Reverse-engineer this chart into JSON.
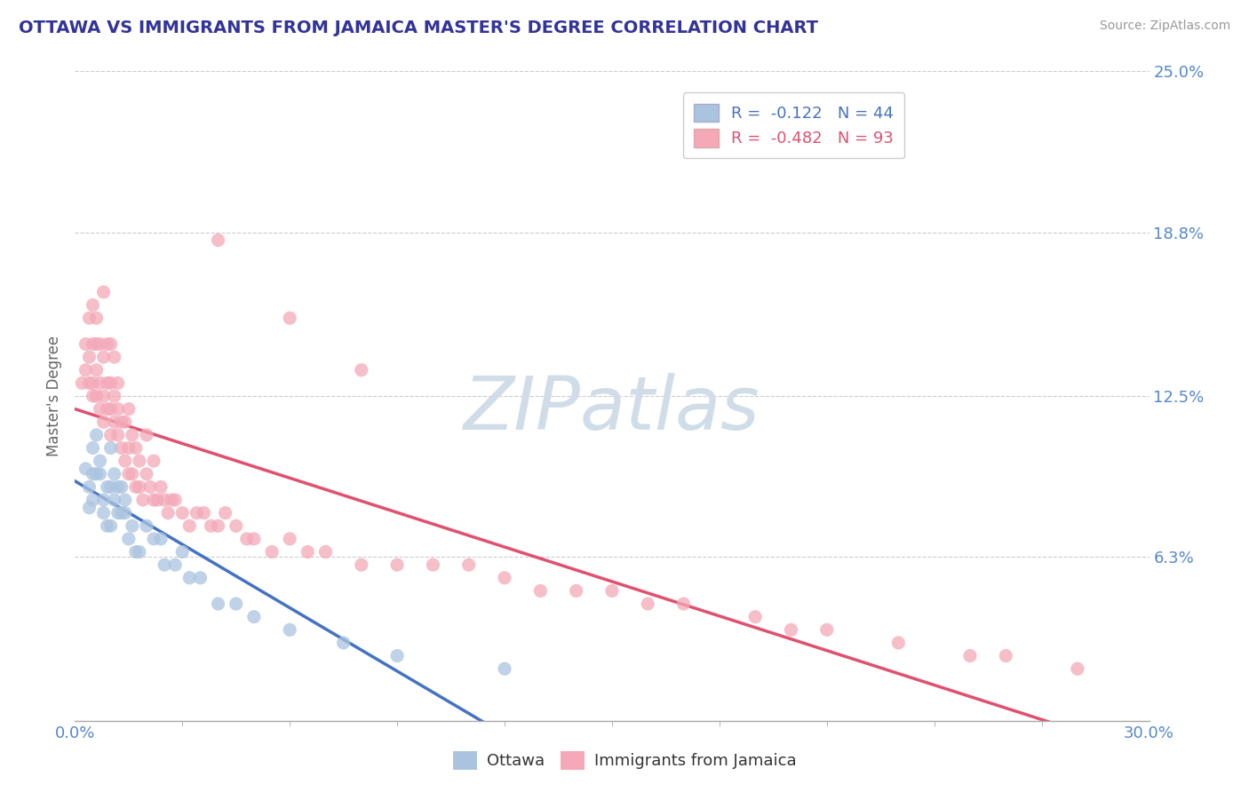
{
  "title": "OTTAWA VS IMMIGRANTS FROM JAMAICA MASTER'S DEGREE CORRELATION CHART",
  "source": "Source: ZipAtlas.com",
  "ylabel": "Master's Degree",
  "xlim": [
    0.0,
    0.3
  ],
  "ylim": [
    0.0,
    0.25
  ],
  "yticks": [
    0.0,
    0.063,
    0.125,
    0.188,
    0.25
  ],
  "ytick_labels": [
    "",
    "6.3%",
    "12.5%",
    "18.8%",
    "25.0%"
  ],
  "legend_ottawa_R": -0.122,
  "legend_ottawa_N": 44,
  "legend_jamaica_R": -0.482,
  "legend_jamaica_N": 93,
  "color_ottawa": "#aac4e0",
  "color_jamaica": "#f4a8b8",
  "line_color_ottawa": "#4472c4",
  "line_color_jamaica": "#e05070",
  "title_color": "#333399",
  "axis_label_color": "#5588cc",
  "background_color": "#ffffff",
  "ottawa_x": [
    0.003,
    0.004,
    0.004,
    0.005,
    0.005,
    0.005,
    0.006,
    0.006,
    0.007,
    0.007,
    0.008,
    0.008,
    0.009,
    0.009,
    0.01,
    0.01,
    0.01,
    0.011,
    0.011,
    0.012,
    0.012,
    0.013,
    0.013,
    0.014,
    0.014,
    0.015,
    0.016,
    0.017,
    0.018,
    0.02,
    0.022,
    0.024,
    0.025,
    0.028,
    0.03,
    0.032,
    0.035,
    0.04,
    0.045,
    0.05,
    0.06,
    0.075,
    0.09,
    0.12
  ],
  "ottawa_y": [
    0.097,
    0.082,
    0.09,
    0.105,
    0.095,
    0.085,
    0.11,
    0.095,
    0.095,
    0.1,
    0.08,
    0.085,
    0.075,
    0.09,
    0.105,
    0.09,
    0.075,
    0.095,
    0.085,
    0.09,
    0.08,
    0.09,
    0.08,
    0.08,
    0.085,
    0.07,
    0.075,
    0.065,
    0.065,
    0.075,
    0.07,
    0.07,
    0.06,
    0.06,
    0.065,
    0.055,
    0.055,
    0.045,
    0.045,
    0.04,
    0.035,
    0.03,
    0.025,
    0.02
  ],
  "jamaica_x": [
    0.002,
    0.003,
    0.003,
    0.004,
    0.004,
    0.004,
    0.005,
    0.005,
    0.005,
    0.005,
    0.006,
    0.006,
    0.006,
    0.006,
    0.007,
    0.007,
    0.007,
    0.008,
    0.008,
    0.008,
    0.008,
    0.009,
    0.009,
    0.009,
    0.01,
    0.01,
    0.01,
    0.01,
    0.011,
    0.011,
    0.011,
    0.012,
    0.012,
    0.012,
    0.013,
    0.013,
    0.014,
    0.014,
    0.015,
    0.015,
    0.015,
    0.016,
    0.016,
    0.017,
    0.017,
    0.018,
    0.018,
    0.019,
    0.02,
    0.02,
    0.021,
    0.022,
    0.022,
    0.023,
    0.024,
    0.025,
    0.026,
    0.027,
    0.028,
    0.03,
    0.032,
    0.034,
    0.036,
    0.038,
    0.04,
    0.042,
    0.045,
    0.048,
    0.05,
    0.055,
    0.06,
    0.065,
    0.07,
    0.08,
    0.09,
    0.1,
    0.11,
    0.12,
    0.13,
    0.14,
    0.15,
    0.16,
    0.17,
    0.19,
    0.2,
    0.21,
    0.23,
    0.25,
    0.26,
    0.28,
    0.04,
    0.06,
    0.08
  ],
  "jamaica_y": [
    0.13,
    0.135,
    0.145,
    0.13,
    0.14,
    0.155,
    0.125,
    0.13,
    0.145,
    0.16,
    0.125,
    0.135,
    0.145,
    0.155,
    0.12,
    0.13,
    0.145,
    0.115,
    0.125,
    0.14,
    0.165,
    0.12,
    0.13,
    0.145,
    0.11,
    0.12,
    0.13,
    0.145,
    0.115,
    0.125,
    0.14,
    0.11,
    0.12,
    0.13,
    0.105,
    0.115,
    0.1,
    0.115,
    0.095,
    0.105,
    0.12,
    0.095,
    0.11,
    0.09,
    0.105,
    0.09,
    0.1,
    0.085,
    0.095,
    0.11,
    0.09,
    0.085,
    0.1,
    0.085,
    0.09,
    0.085,
    0.08,
    0.085,
    0.085,
    0.08,
    0.075,
    0.08,
    0.08,
    0.075,
    0.075,
    0.08,
    0.075,
    0.07,
    0.07,
    0.065,
    0.07,
    0.065,
    0.065,
    0.06,
    0.06,
    0.06,
    0.06,
    0.055,
    0.05,
    0.05,
    0.05,
    0.045,
    0.045,
    0.04,
    0.035,
    0.035,
    0.03,
    0.025,
    0.025,
    0.02,
    0.185,
    0.155,
    0.135
  ]
}
